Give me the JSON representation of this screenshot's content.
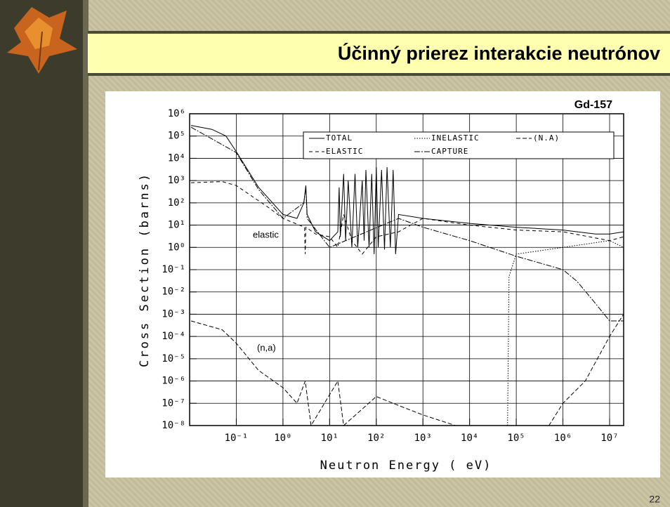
{
  "slide": {
    "title": "Účinný prierez interakcie neutrónov",
    "page_number": "22"
  },
  "chart_data": {
    "type": "line",
    "title": "Gd-157",
    "x_label": "Neutron Energy ( eV)",
    "y_label": "Cross Section (barns)",
    "x_log": true,
    "y_log": true,
    "grid": true,
    "xlim": [
      0.01,
      20000000
    ],
    "ylim": [
      1e-08,
      1000000
    ],
    "xticks": [
      {
        "value": 0.1,
        "label": "10⁻¹"
      },
      {
        "value": 1,
        "label": "10⁰"
      },
      {
        "value": 10,
        "label": "10¹"
      },
      {
        "value": 100,
        "label": "10²"
      },
      {
        "value": 1000,
        "label": "10³"
      },
      {
        "value": 10000,
        "label": "10⁴"
      },
      {
        "value": 100000,
        "label": "10⁵"
      },
      {
        "value": 1000000,
        "label": "10⁶"
      },
      {
        "value": 10000000,
        "label": "10⁷"
      }
    ],
    "yticks": [
      {
        "value": 1e-08,
        "label": "10⁻⁸"
      },
      {
        "value": 1e-07,
        "label": "10⁻⁷"
      },
      {
        "value": 1e-06,
        "label": "10⁻⁶"
      },
      {
        "value": 1e-05,
        "label": "10⁻⁵"
      },
      {
        "value": 0.0001,
        "label": "10⁻⁴"
      },
      {
        "value": 0.001,
        "label": "10⁻³"
      },
      {
        "value": 0.01,
        "label": "10⁻²"
      },
      {
        "value": 0.1,
        "label": "10⁻¹"
      },
      {
        "value": 1,
        "label": "10⁰"
      },
      {
        "value": 10,
        "label": "10¹"
      },
      {
        "value": 100,
        "label": "10²"
      },
      {
        "value": 1000,
        "label": "10³"
      },
      {
        "value": 10000,
        "label": "10⁴"
      },
      {
        "value": 100000,
        "label": "10⁵"
      },
      {
        "value": 1000000,
        "label": "10⁶"
      }
    ],
    "annotations": [
      "elastic",
      "(n,a)"
    ],
    "series": [
      {
        "name": "TOTAL",
        "color": "#000000",
        "dash": "none",
        "x": [
          0.0107,
          0.03,
          0.06,
          0.1,
          0.3,
          1,
          2,
          2.8,
          3.1,
          3.3,
          5,
          10,
          15,
          16,
          17,
          20,
          22,
          25,
          30,
          35,
          40,
          50,
          55,
          60,
          70,
          80,
          90,
          100,
          110,
          130,
          150,
          170,
          200,
          230,
          260,
          300,
          1000,
          10000,
          100000,
          1000000,
          5000000,
          10000000,
          20000000
        ],
        "values": [
          300000,
          200000,
          100000,
          20000,
          500,
          30,
          20,
          100,
          600,
          30,
          5,
          2,
          5,
          500,
          3,
          2000,
          2,
          1000,
          1,
          2000,
          1,
          1000,
          2,
          3000,
          1,
          2000,
          0.5,
          4000,
          1,
          3000,
          0.8,
          4000,
          1,
          3000,
          0.5,
          30,
          20,
          12,
          8,
          6,
          4,
          4,
          5
        ]
      },
      {
        "name": "INELASTIC",
        "color": "#000000",
        "dash": "1.5,2",
        "x": [
          65000,
          70000,
          100000,
          1000000,
          10000000,
          20000000
        ],
        "values": [
          1e-08,
          0.05,
          0.5,
          1,
          2,
          1
        ]
      },
      {
        "name": "(N.A)",
        "color": "#000000",
        "dash": "6,3",
        "x": [
          0.0107,
          0.05,
          0.1,
          0.3,
          1,
          2,
          3,
          4,
          15,
          20,
          100,
          300,
          1000,
          5000,
          500000,
          1000000,
          3000000,
          10000000,
          20000000
        ],
        "values": [
          0.0005,
          0.0002,
          5e-05,
          3e-06,
          5e-07,
          1e-07,
          1e-06,
          1e-08,
          1e-06,
          1e-08,
          2e-07,
          8e-08,
          3e-08,
          1e-08,
          1e-08,
          1e-07,
          1e-06,
          0.0001,
          0.001
        ]
      },
      {
        "name": "ELASTIC",
        "color": "#000000",
        "dash": "5,4",
        "x": [
          0.0107,
          0.05,
          0.1,
          0.5,
          1,
          2.9,
          3,
          3.1,
          5,
          10,
          15,
          20,
          30,
          50,
          100,
          300,
          1000,
          10000,
          100000,
          1000000,
          10000000,
          20000000
        ],
        "values": [
          800,
          900,
          600,
          60,
          20,
          8,
          0.5,
          8,
          4,
          3,
          1,
          30,
          2,
          0.5,
          3,
          5,
          20,
          10,
          6,
          5,
          2,
          3
        ]
      },
      {
        "name": "CAPTURE",
        "color": "#000000",
        "dash": "8,2,2,2",
        "x": [
          0.0107,
          0.1,
          0.3,
          1,
          2.8,
          3.1,
          3.3,
          10,
          300,
          1000,
          10000,
          100000,
          1000000,
          2000000,
          5000000,
          10000000,
          20000000
        ],
        "values": [
          250000,
          18000,
          400,
          20,
          100,
          500,
          20,
          1,
          20,
          8,
          2,
          0.4,
          0.1,
          0.03,
          0.003,
          0.0005,
          0.0005
        ]
      }
    ]
  }
}
